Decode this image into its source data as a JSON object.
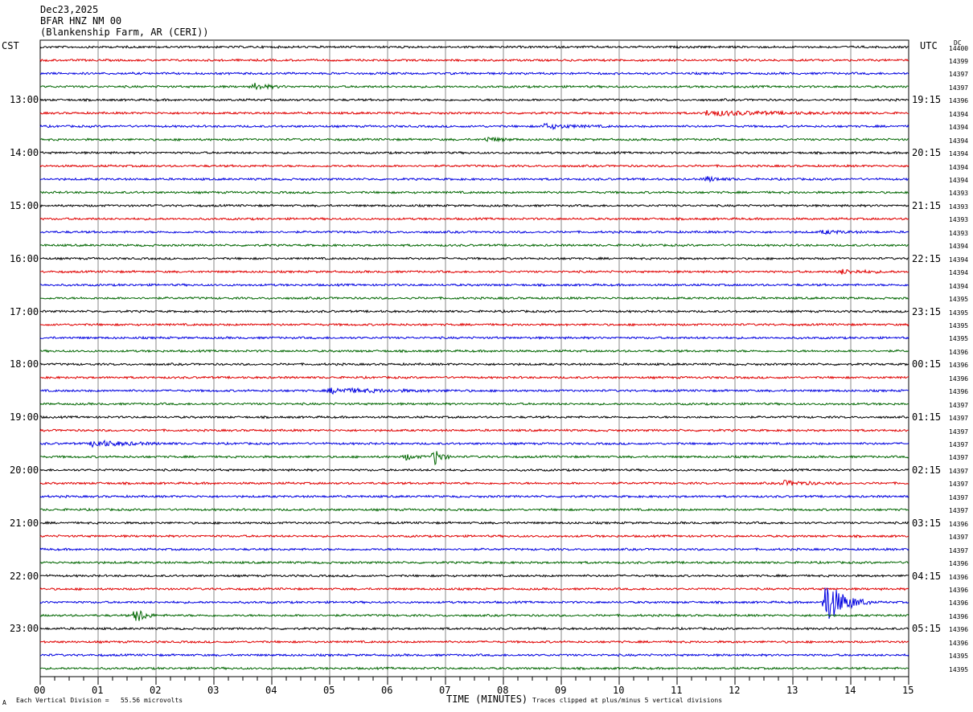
{
  "header": {
    "date": "Dec23,2025",
    "station": "BFAR HNZ NM 00",
    "location": "(Blankenship Farm, AR (CERI))"
  },
  "left_tz": "CST",
  "right_tz": "UTC",
  "dc_header": "DC",
  "footer": {
    "left_mark": "A",
    "vertical_division": "Each Vertical Division =   55.56 microvolts",
    "xlabel": "TIME (MINUTES)",
    "clip_note": "Traces clipped at plus/minus 5 vertical divisions"
  },
  "chart_data": {
    "type": "line",
    "title": "",
    "xlabel": "TIME (MINUTES)",
    "xlim": [
      0,
      15
    ],
    "x_ticks": [
      "00",
      "01",
      "02",
      "03",
      "04",
      "05",
      "06",
      "07",
      "08",
      "09",
      "10",
      "11",
      "12",
      "13",
      "14",
      "15"
    ],
    "trace_colors": [
      "#000000",
      "#e00000",
      "#0000e0",
      "#006600"
    ],
    "rows": 48,
    "left_hour_labels": [
      {
        "row": 4,
        "text": "13:00"
      },
      {
        "row": 8,
        "text": "14:00"
      },
      {
        "row": 12,
        "text": "15:00"
      },
      {
        "row": 16,
        "text": "16:00"
      },
      {
        "row": 20,
        "text": "17:00"
      },
      {
        "row": 24,
        "text": "18:00"
      },
      {
        "row": 28,
        "text": "19:00"
      },
      {
        "row": 32,
        "text": "20:00"
      },
      {
        "row": 36,
        "text": "21:00"
      },
      {
        "row": 40,
        "text": "22:00"
      },
      {
        "row": 44,
        "text": "23:00"
      }
    ],
    "right_hour_labels": [
      {
        "row": 4,
        "text": "19:15"
      },
      {
        "row": 8,
        "text": "20:15"
      },
      {
        "row": 12,
        "text": "21:15"
      },
      {
        "row": 16,
        "text": "22:15"
      },
      {
        "row": 20,
        "text": "23:15"
      },
      {
        "row": 24,
        "text": "00:15"
      },
      {
        "row": 28,
        "text": "01:15"
      },
      {
        "row": 32,
        "text": "02:15"
      },
      {
        "row": 36,
        "text": "03:15"
      },
      {
        "row": 40,
        "text": "04:15"
      },
      {
        "row": 44,
        "text": "05:15"
      }
    ],
    "dc_values": [
      "14400",
      "14399",
      "14397",
      "14397",
      "14396",
      "14394",
      "14394",
      "14394",
      "14394",
      "14394",
      "14394",
      "14393",
      "14393",
      "14393",
      "14393",
      "14394",
      "14394",
      "14394",
      "14394",
      "14395",
      "14395",
      "14395",
      "14395",
      "14396",
      "14396",
      "14396",
      "14396",
      "14397",
      "14397",
      "14397",
      "14397",
      "14397",
      "14397",
      "14397",
      "14397",
      "14397",
      "14396",
      "14397",
      "14397",
      "14396",
      "14396",
      "14396",
      "14396",
      "14396",
      "14396",
      "14396",
      "14395",
      "14395"
    ],
    "events": [
      {
        "row": 3,
        "minute": 3.7,
        "amp": 4,
        "dur": 0.6
      },
      {
        "row": 5,
        "minute": 11.5,
        "amp": 3,
        "dur": 3.0
      },
      {
        "row": 6,
        "minute": 8.7,
        "amp": 3,
        "dur": 1.2
      },
      {
        "row": 7,
        "minute": 7.7,
        "amp": 3,
        "dur": 0.6
      },
      {
        "row": 10,
        "minute": 11.5,
        "amp": 3,
        "dur": 0.6
      },
      {
        "row": 14,
        "minute": 13.5,
        "amp": 2,
        "dur": 1.0
      },
      {
        "row": 17,
        "minute": 13.8,
        "amp": 3,
        "dur": 1.0
      },
      {
        "row": 26,
        "minute": 5.0,
        "amp": 3,
        "dur": 2.5
      },
      {
        "row": 30,
        "minute": 0.9,
        "amp": 4,
        "dur": 1.5
      },
      {
        "row": 31,
        "minute": 6.3,
        "amp": 4,
        "dur": 0.4
      },
      {
        "row": 31,
        "minute": 6.8,
        "amp": 13,
        "dur": 0.3
      },
      {
        "row": 33,
        "minute": 12.8,
        "amp": 3,
        "dur": 1.2
      },
      {
        "row": 42,
        "minute": 13.55,
        "amp": 30,
        "dur": 0.8
      },
      {
        "row": 43,
        "minute": 1.65,
        "amp": 12,
        "dur": 0.35
      }
    ]
  }
}
